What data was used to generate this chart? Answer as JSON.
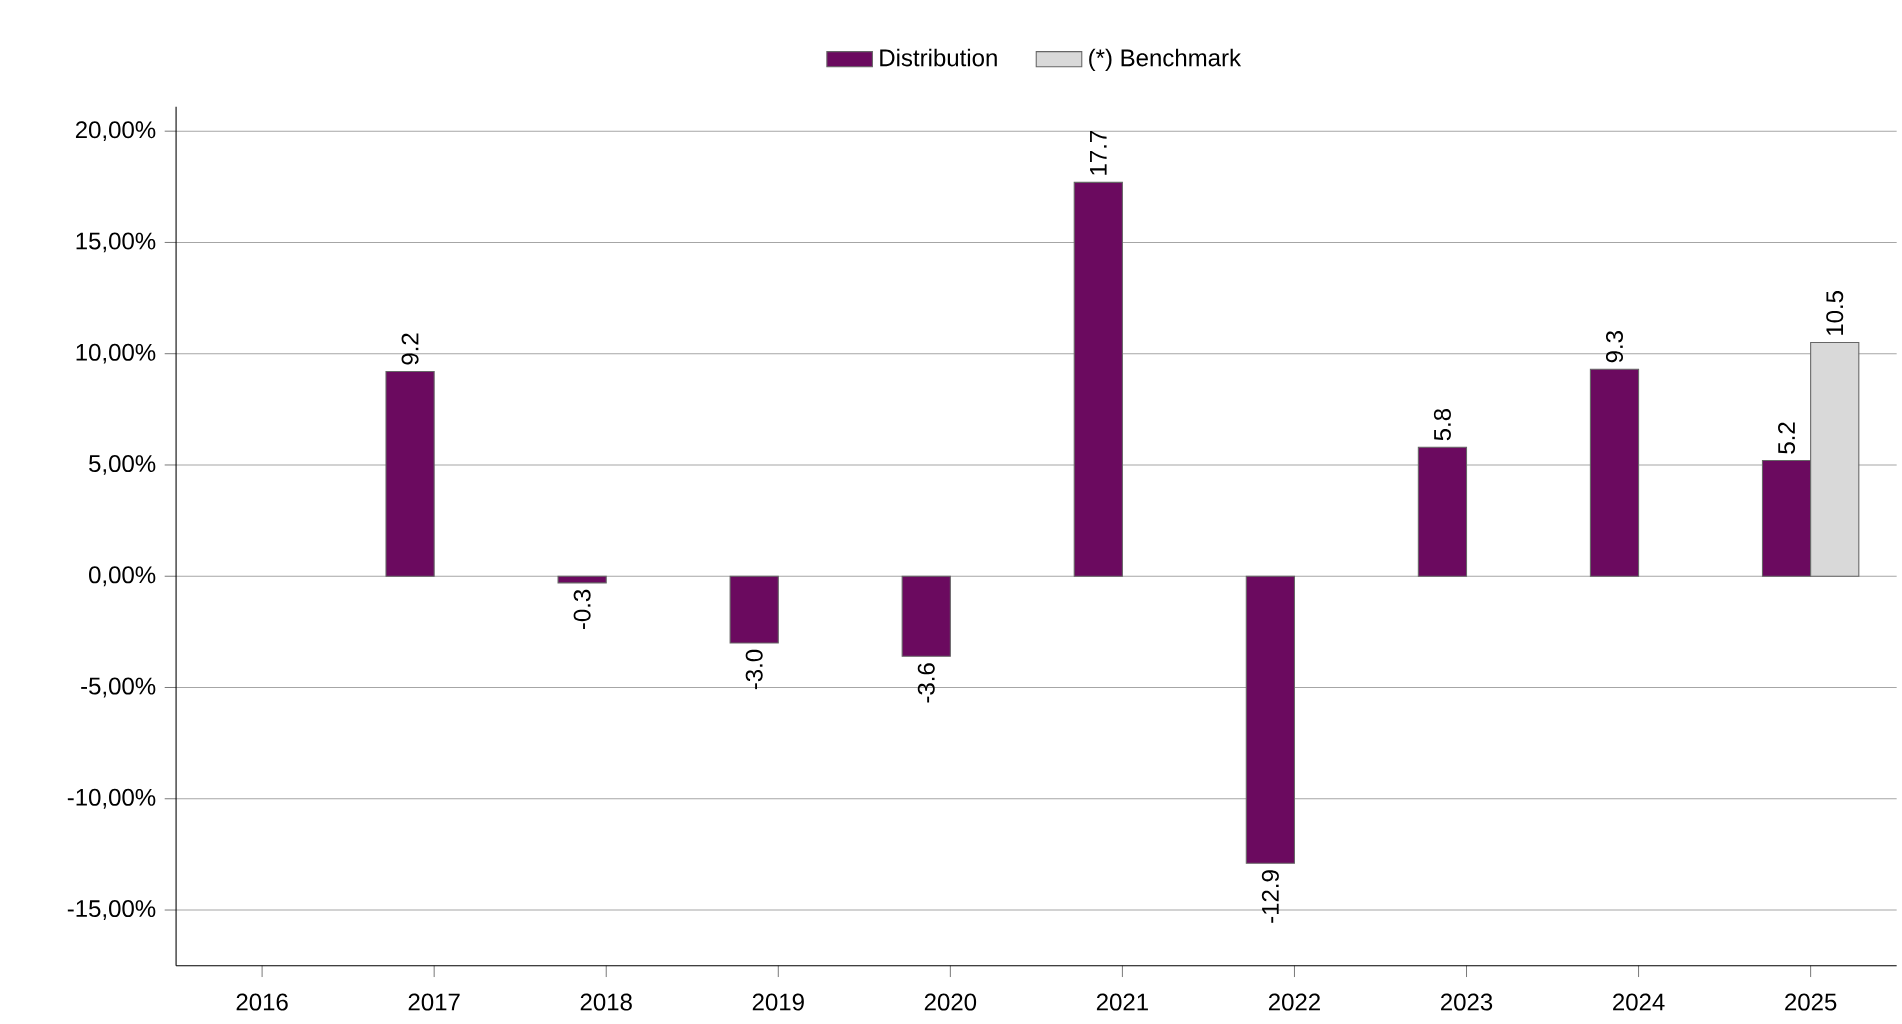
{
  "chart_data": {
    "type": "bar",
    "categories": [
      "2016",
      "2017",
      "2018",
      "2019",
      "2020",
      "2021",
      "2022",
      "2023",
      "2024",
      "2025"
    ],
    "series": [
      {
        "name": "Distribution",
        "color": "#6b0a5f",
        "values": [
          null,
          9.2,
          -0.3,
          -3.0,
          -3.6,
          17.7,
          -12.9,
          5.8,
          9.3,
          5.2
        ],
        "value_labels": [
          null,
          "9.2",
          "-0.3",
          "-3.0",
          "-3.6",
          "17.7",
          "-12.9",
          "5.8",
          "9.3",
          "5.2"
        ]
      },
      {
        "name": "(*) Benchmark",
        "color": "#d9d9d9",
        "values": [
          null,
          null,
          null,
          null,
          null,
          null,
          null,
          null,
          null,
          10.5
        ],
        "value_labels": [
          null,
          null,
          null,
          null,
          null,
          null,
          null,
          null,
          null,
          "10.5"
        ]
      }
    ],
    "ylim": [
      -17.5,
      21.1
    ],
    "yticks": [
      {
        "value": -15,
        "label": "-15,00%"
      },
      {
        "value": -10,
        "label": "-10,00%"
      },
      {
        "value": -5,
        "label": "-5,00%"
      },
      {
        "value": 0,
        "label": "0,00%"
      },
      {
        "value": 5,
        "label": "5,00%"
      },
      {
        "value": 10,
        "label": "10,00%"
      },
      {
        "value": 15,
        "label": "15,00%"
      },
      {
        "value": 20,
        "label": "20,00%"
      }
    ],
    "grid": "y",
    "legend": "top"
  }
}
